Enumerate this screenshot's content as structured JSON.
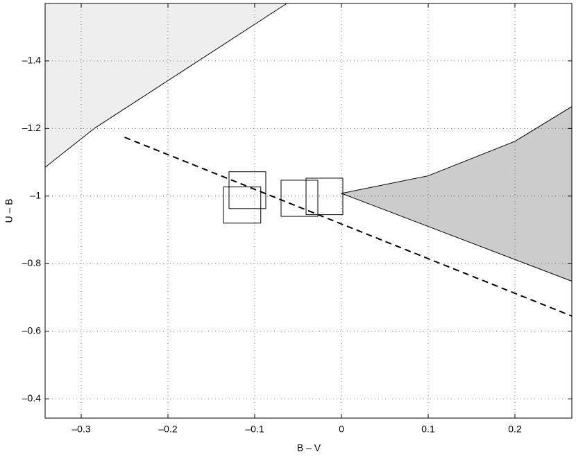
{
  "chart_data": {
    "type": "region",
    "xlabel": "B – V",
    "ylabel": "U – B",
    "xlim": [
      -0.3416,
      0.2656
    ],
    "ylim": [
      -1.57,
      -0.343
    ],
    "y_reversed": true,
    "grid": true,
    "xticks": [
      {
        "value": -0.3,
        "label": "–0.3"
      },
      {
        "value": -0.2,
        "label": "–0.2"
      },
      {
        "value": -0.1,
        "label": "–0.1"
      },
      0,
      0.1,
      0.2
    ],
    "yticks": [
      {
        "value": -1.4,
        "label": "–1.4"
      },
      {
        "value": -1.2,
        "label": "–1.2"
      },
      {
        "value": -1,
        "label": "–1"
      },
      {
        "value": -0.8,
        "label": "–0.8"
      },
      {
        "value": -0.6,
        "label": "–0.6"
      },
      {
        "value": -0.4,
        "label": "–0.4"
      }
    ],
    "regions": [
      {
        "x": [
          -0.3416,
          -0.285,
          -0.063
        ],
        "y": [
          -1.085,
          -1.2,
          -1.57
        ],
        "color": "#eeeeee"
      },
      {
        "x": [
          0,
          0.1,
          0.2,
          0.2656,
          0.2656
        ],
        "y": [
          -1.008,
          -1.06,
          -1.162,
          -1.265,
          -0.748
        ],
        "color": "#cccccc"
      }
    ],
    "lines": [
      {
        "x": [
          -0.25,
          0.2656
        ],
        "y": [
          -1.174,
          -0.645
        ],
        "color": "#000000",
        "dashed": true
      }
    ],
    "boxes": [
      {
        "x": [
          -0.1296,
          -0.0872
        ],
        "y": [
          -1.072,
          -0.963
        ]
      },
      {
        "x": [
          -0.136,
          -0.093
        ],
        "y": [
          -1.027,
          -0.92
        ]
      },
      {
        "x": [
          -0.0696,
          -0.0272
        ],
        "y": [
          -1.047,
          -0.94
        ]
      },
      {
        "x": [
          -0.0408,
          0.0016
        ],
        "y": [
          -1.053,
          -0.945
        ]
      }
    ]
  }
}
